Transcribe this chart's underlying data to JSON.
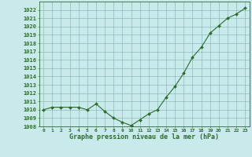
{
  "x": [
    0,
    1,
    2,
    3,
    4,
    5,
    6,
    7,
    8,
    9,
    10,
    11,
    12,
    13,
    14,
    15,
    16,
    17,
    18,
    19,
    20,
    21,
    22,
    23
  ],
  "y": [
    1010.0,
    1010.3,
    1010.3,
    1010.3,
    1010.3,
    1010.0,
    1010.7,
    1009.8,
    1009.0,
    1008.5,
    1008.1,
    1008.8,
    1009.5,
    1010.0,
    1011.5,
    1012.8,
    1014.4,
    1016.3,
    1017.5,
    1019.2,
    1020.1,
    1021.0,
    1021.5,
    1022.2
  ],
  "line_color": "#2d6a2d",
  "marker": "D",
  "marker_size": 2.0,
  "bg_color": "#c8eaea",
  "grid_color": "#7fb0b0",
  "axis_color": "#2d6a2d",
  "tick_color": "#2d6a2d",
  "xlabel": "Graphe pression niveau de la mer (hPa)",
  "xlabel_color": "#2d6a2d",
  "ylim": [
    1008,
    1023
  ],
  "ytick_step": 1,
  "xlim": [
    -0.5,
    23.5
  ],
  "xlabel_fontsize": 6.0,
  "ytick_fontsize": 5.0,
  "xtick_fontsize": 4.5
}
